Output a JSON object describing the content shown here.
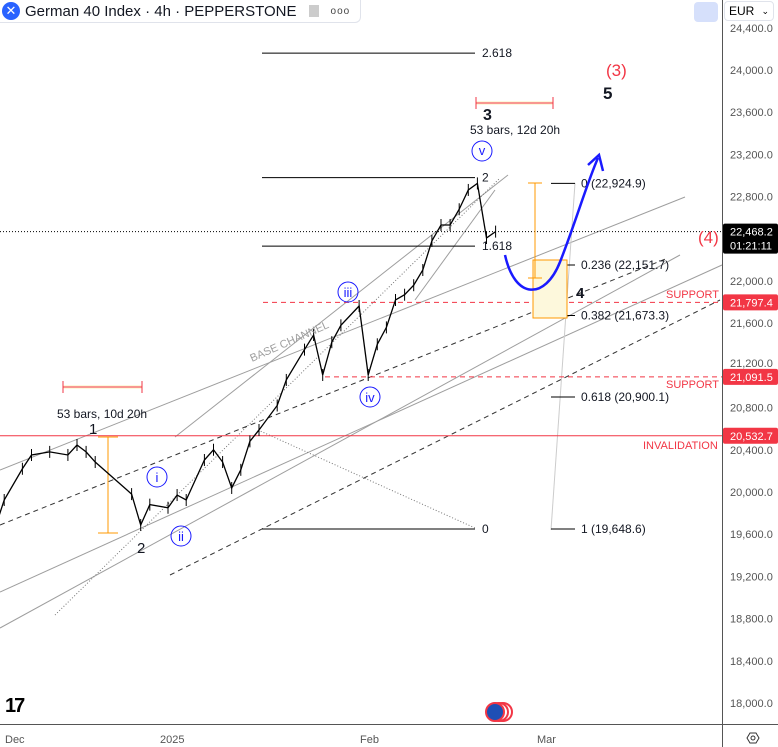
{
  "header": {
    "title": "German 40 Index · 4h · PEPPERSTONE",
    "symbol_icon": "close-x-icon",
    "more": "ooo"
  },
  "currency": {
    "label": "EUR"
  },
  "colors": {
    "accent_red": "#f23645",
    "blue": "#1a1aff",
    "orange": "#ff9800",
    "candle": "#000000",
    "grid_line": "#9e9e9e"
  },
  "chart_data": {
    "type": "line",
    "title": "German 40 Index · 4h · PEPPERSTONE",
    "ylim": [
      17900,
      24450
    ],
    "y_ticks": [
      "24,400.0",
      "24,000.0",
      "23,600.0",
      "23,200.0",
      "22,800.0",
      "22,000.0",
      "21,600.0",
      "21,200.0",
      "20,800.0",
      "20,400.0",
      "20,000.0",
      "19,600.0",
      "19,200.0",
      "18,800.0",
      "18,400.0",
      "18,000.0"
    ],
    "y_tick_values": [
      24400,
      24000,
      23600,
      23200,
      22800,
      22000,
      21600,
      21200,
      20800,
      20400,
      20000,
      19600,
      19200,
      18800,
      18400,
      18000
    ],
    "x_ticks": [
      "Dec",
      "2025",
      "Feb",
      "Mar"
    ],
    "series": [
      {
        "values": [
          [
            "2024-12-05",
            19403
          ],
          [
            "2024-12-06",
            19660
          ],
          [
            "2024-12-09",
            19924
          ],
          [
            "2024-12-11",
            20220
          ],
          [
            "2024-12-12",
            20351
          ],
          [
            "2024-12-16",
            20380
          ],
          [
            "2024-12-18",
            20351
          ],
          [
            "2024-12-19",
            20445
          ],
          [
            "2024-12-20",
            20380
          ],
          [
            "2024-12-23",
            20284
          ],
          [
            "2024-12-27",
            19980
          ],
          [
            "2024-12-30",
            19687
          ],
          [
            "2024-12-31",
            19880
          ],
          [
            "2025-01-02",
            19850
          ],
          [
            "2025-01-03",
            19971
          ],
          [
            "2025-01-06",
            19924
          ],
          [
            "2025-01-08",
            20303
          ],
          [
            "2025-01-09",
            20400
          ],
          [
            "2025-01-10",
            20284
          ],
          [
            "2025-01-13",
            20038
          ],
          [
            "2025-01-14",
            20210
          ],
          [
            "2025-01-15",
            20480
          ],
          [
            "2025-01-16",
            20588
          ],
          [
            "2025-01-20",
            20820
          ],
          [
            "2025-01-21",
            21062
          ],
          [
            "2025-01-23",
            21350
          ],
          [
            "2025-01-24",
            21488
          ],
          [
            "2025-01-27",
            21109
          ],
          [
            "2025-01-28",
            21420
          ],
          [
            "2025-01-29",
            21580
          ],
          [
            "2025-01-31",
            21763
          ],
          [
            "2025-02-03",
            21109
          ],
          [
            "2025-02-04",
            21400
          ],
          [
            "2025-02-05",
            21560
          ],
          [
            "2025-02-06",
            21820
          ],
          [
            "2025-02-07",
            21870
          ],
          [
            "2025-02-10",
            21960
          ],
          [
            "2025-02-11",
            22104
          ],
          [
            "2025-02-12",
            22380
          ],
          [
            "2025-02-13",
            22531
          ],
          [
            "2025-02-14",
            22531
          ],
          [
            "2025-02-17",
            22680
          ],
          [
            "2025-02-18",
            22863
          ],
          [
            "2025-02-19",
            22925
          ],
          [
            "2025-02-20",
            22408
          ],
          [
            "2025-02-21",
            22468
          ]
        ]
      }
    ],
    "price_labels": [
      {
        "value": 22468.2,
        "text": "22,468.2",
        "sub": "01:21:11",
        "color": "#000000"
      },
      {
        "value": 21797.4,
        "text": "21,797.4",
        "color": "#f23645"
      },
      {
        "value": 21091.5,
        "text": "21,091.5",
        "color": "#f23645"
      },
      {
        "value": 20532.7,
        "text": "20,532.7",
        "color": "#f23645"
      }
    ],
    "levels": {
      "support_1": 21797.4,
      "support_2": 21091.5,
      "invalidation": 20532.7,
      "last": 22468.2
    },
    "fib_extension": [
      {
        "label": "2.618",
        "value": 24160
      },
      {
        "label": "2",
        "value": 22980
      },
      {
        "label": "1.618",
        "value": 22330
      },
      {
        "label": "0",
        "value": 19648.6
      }
    ],
    "fib_retracement": [
      {
        "label": "0 (22,924.9)",
        "value": 22924.9
      },
      {
        "label": "0.236 (22,151.7)",
        "value": 22151.7
      },
      {
        "label": "0.382 (21,673.3)",
        "value": 21673.3
      },
      {
        "label": "0.618 (20,900.1)",
        "value": 20900.1
      },
      {
        "label": "1 (19,648.6)",
        "value": 19648.6
      }
    ],
    "annotations": {
      "support_label": "SUPPORT",
      "invalidation_label": "INVALIDATION",
      "base_channel": "BASE CHANNEL",
      "range_1": "53 bars, 10d 20h",
      "range_2": "53 bars, 12d 20h",
      "wave_1": "1",
      "wave_2": "2",
      "wave_3": "3",
      "wave_4": "4",
      "wave_5": "5",
      "wave_3_major": "(3)",
      "wave_4_major": "(4)",
      "wave_i": "i",
      "wave_ii": "ii",
      "wave_iii": "iii",
      "wave_iv": "iv",
      "wave_v": "v"
    }
  }
}
